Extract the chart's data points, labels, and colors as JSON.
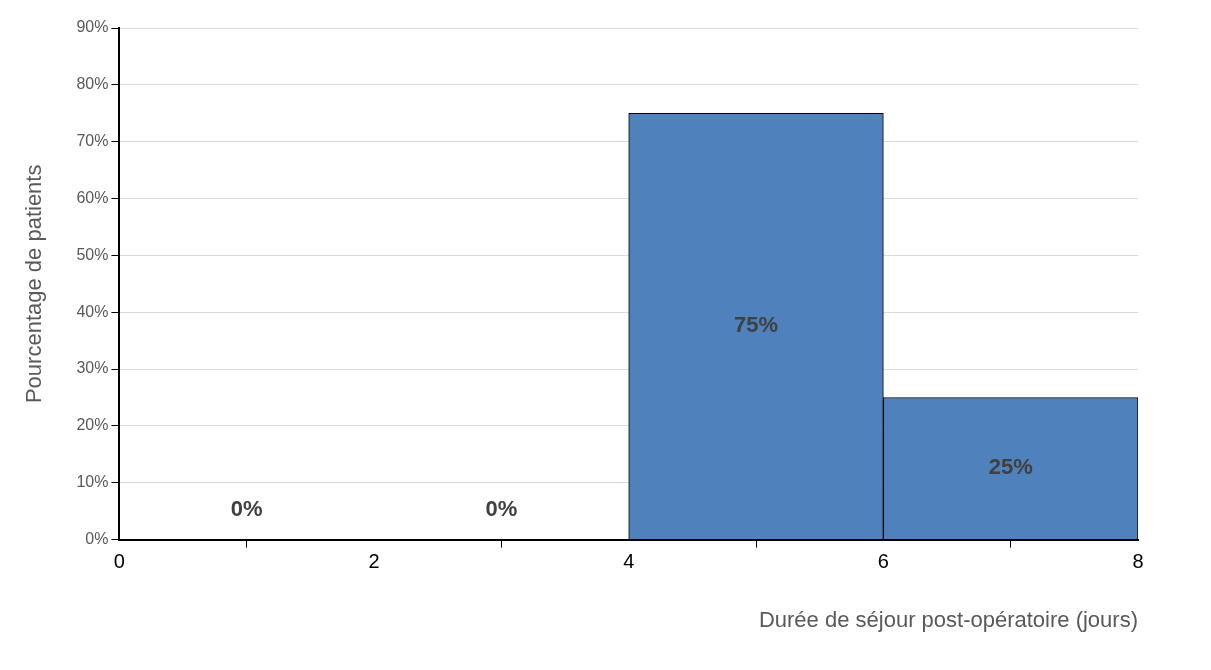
{
  "chart_data": {
    "type": "histogram",
    "xlabel": "Durée de séjour post-opératoire (jours)",
    "ylabel": "Pourcentage de patients",
    "bins": [
      0,
      2,
      4,
      6,
      8
    ],
    "values": [
      0,
      0,
      75,
      25
    ],
    "value_labels": [
      "0%",
      "0%",
      "75%",
      "25%"
    ],
    "color": "#4f81bd",
    "xlim": [
      0,
      8
    ],
    "xticks": [
      0,
      2,
      4,
      6,
      8
    ],
    "ylim": [
      0,
      90
    ],
    "yticks": [
      {
        "value": 0,
        "label": "0%"
      },
      {
        "value": 10,
        "label": "10%"
      },
      {
        "value": 20,
        "label": "20%"
      },
      {
        "value": 30,
        "label": "30%"
      },
      {
        "value": 40,
        "label": "40%"
      },
      {
        "value": 50,
        "label": "50%"
      },
      {
        "value": 60,
        "label": "60%"
      },
      {
        "value": 70,
        "label": "70%"
      },
      {
        "value": 80,
        "label": "80%"
      },
      {
        "value": 90,
        "label": "90%"
      }
    ],
    "grid": "y",
    "legend": false
  }
}
